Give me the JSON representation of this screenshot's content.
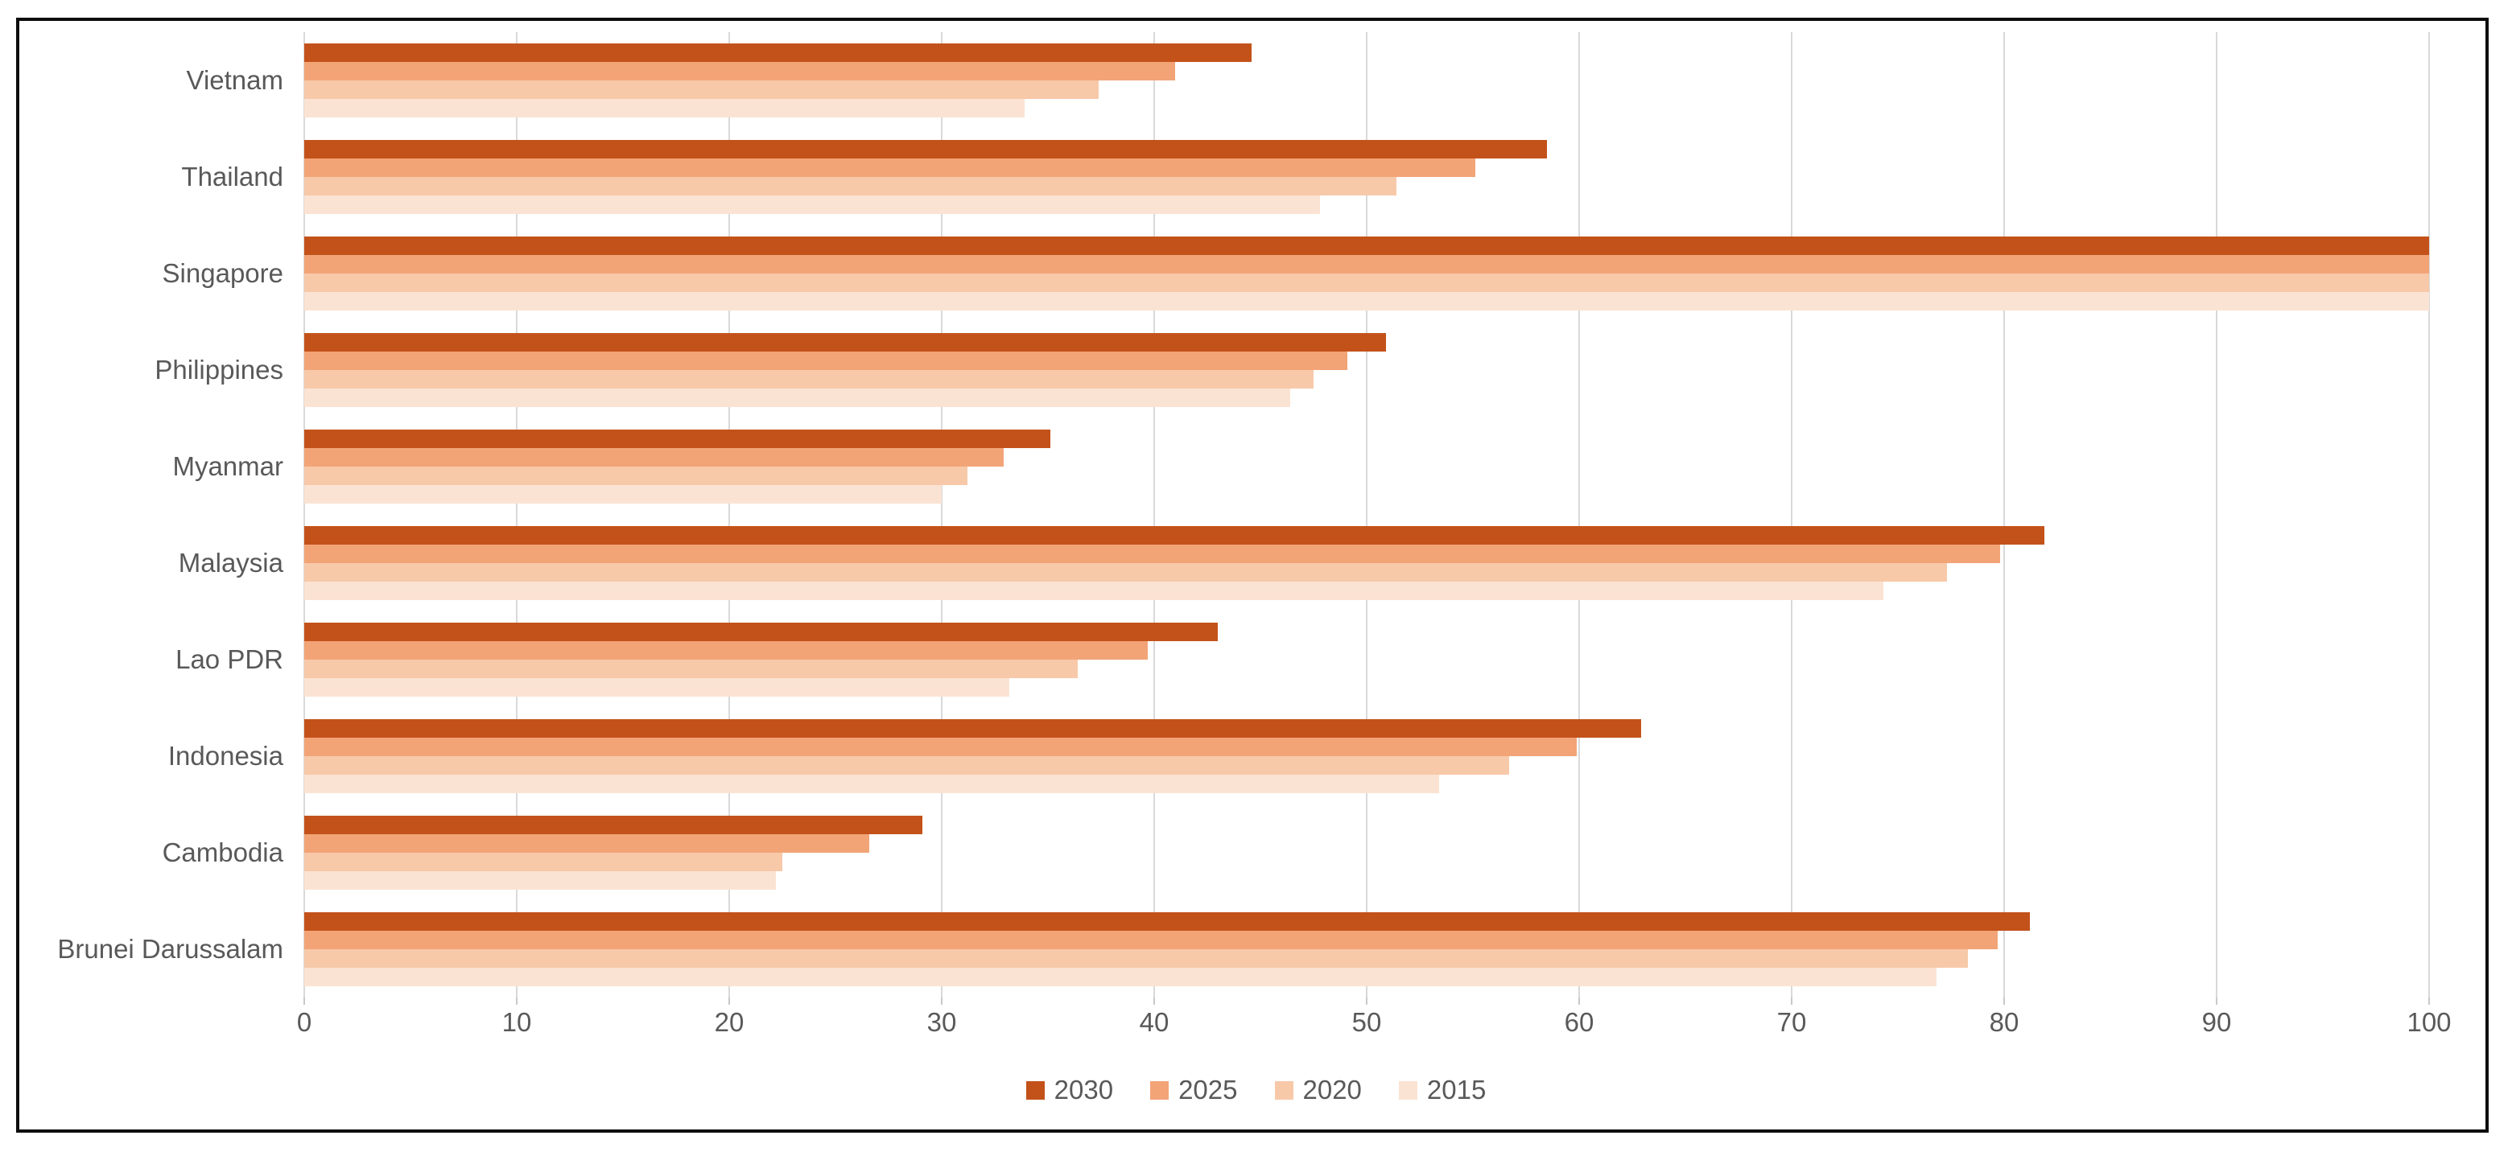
{
  "page": {
    "background": "#ffffff",
    "frame_border_color": "#0d0d0d"
  },
  "chart_data": {
    "type": "bar",
    "orientation": "horizontal",
    "title": "",
    "xlabel": "",
    "ylabel": "",
    "categories": [
      "Vietnam",
      "Thailand",
      "Singapore",
      "Philippines",
      "Myanmar",
      "Malaysia",
      "Lao PDR",
      "Indonesia",
      "Cambodia",
      "Brunei Darussalam"
    ],
    "series": [
      {
        "name": "2030",
        "color": "#c3521a",
        "values": [
          44.6,
          58.5,
          100,
          50.9,
          35.1,
          81.9,
          43.0,
          62.9,
          29.1,
          81.2
        ]
      },
      {
        "name": "2025",
        "color": "#f2a477",
        "values": [
          41.0,
          55.1,
          100,
          49.1,
          32.9,
          79.8,
          39.7,
          59.9,
          26.6,
          79.7
        ]
      },
      {
        "name": "2020",
        "color": "#f7c9a9",
        "values": [
          37.4,
          51.4,
          100,
          47.5,
          31.2,
          77.3,
          36.4,
          56.7,
          22.5,
          78.3
        ]
      },
      {
        "name": "2015",
        "color": "#fbe3d3",
        "values": [
          33.9,
          47.8,
          100,
          46.4,
          30.0,
          74.3,
          33.2,
          53.4,
          22.2,
          76.8
        ]
      }
    ],
    "xlim": [
      0,
      100
    ],
    "x_ticks": [
      "0",
      "10",
      "20",
      "30",
      "40",
      "50",
      "60",
      "70",
      "80",
      "90",
      "100"
    ],
    "grid": "vertical",
    "gridline_color": "#d9d9d9",
    "axis_text_color": "#595959",
    "legend_position": "bottom-center",
    "legend_entries": [
      "2030",
      "2025",
      "2020",
      "2015"
    ]
  }
}
